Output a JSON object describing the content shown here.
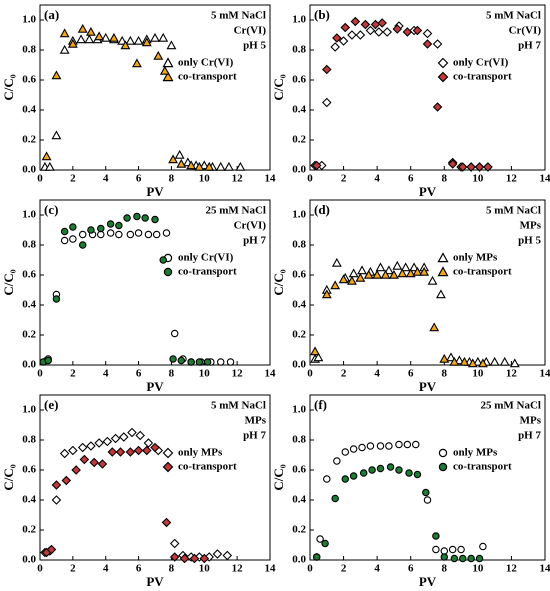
{
  "chart_data": [
    {
      "type": "scatter",
      "panel_label": "(a)",
      "annotations": [
        "5 mM NaCl",
        "Cr(VI)",
        "pH 5"
      ],
      "xlabel": "PV",
      "ylabel": "C/C₀",
      "legend": "upper right",
      "xlim": [
        0,
        14
      ],
      "xticks": [
        0,
        2,
        4,
        6,
        8,
        10,
        12,
        14
      ],
      "ylim": [
        0,
        1.1
      ],
      "yticks": [
        {
          "value": 0,
          "label": "0.0"
        },
        {
          "value": 0.2,
          "label": "0.2"
        },
        {
          "value": 0.4,
          "label": "0.4"
        },
        {
          "value": 0.6,
          "label": "0.6"
        },
        {
          "value": 0.8,
          "label": "0.8"
        },
        {
          "value": 1,
          "label": "1.0"
        }
      ],
      "series": [
        {
          "name": "only Cr(VI)",
          "marker": "triangle",
          "color": "#ffffff",
          "edgecolor": "#000000",
          "x": [
            0.3,
            0.6,
            1.0,
            1.5,
            2.0,
            2.5,
            3.0,
            3.5,
            4.0,
            4.5,
            5.0,
            5.5,
            6.0,
            6.5,
            7.0,
            7.5,
            8.0,
            8.5,
            9.0,
            9.5,
            10.0,
            10.5,
            11.0,
            11.5,
            12.2
          ],
          "values": [
            0.02,
            0.02,
            0.23,
            0.8,
            0.86,
            0.87,
            0.87,
            0.87,
            0.88,
            0.87,
            0.86,
            0.86,
            0.86,
            0.87,
            0.88,
            0.88,
            0.83,
            0.1,
            0.05,
            0.03,
            0.03,
            0.02,
            0.02,
            0.02,
            0.02
          ]
        },
        {
          "name": "co-transport",
          "marker": "triangle",
          "color": "#f2a71b",
          "edgecolor": "#000000",
          "x": [
            0.4,
            1.0,
            1.5,
            2.0,
            2.6,
            3.1,
            3.6,
            4.5,
            5.2,
            5.9,
            6.5,
            7.2,
            7.6,
            8.1,
            8.6,
            9.2,
            9.7,
            10.3
          ],
          "values": [
            0.09,
            0.63,
            0.91,
            0.84,
            0.94,
            0.92,
            0.89,
            0.88,
            0.83,
            0.71,
            0.85,
            0.76,
            0.66,
            0.07,
            0.04,
            0.03,
            0.02,
            0.02
          ]
        }
      ]
    },
    {
      "type": "scatter",
      "panel_label": "(b)",
      "annotations": [
        "5 mM NaCl",
        "Cr(VI)",
        "pH 7"
      ],
      "xlabel": "PV",
      "ylabel": "C/C₀",
      "legend": "upper right",
      "xlim": [
        0,
        14
      ],
      "xticks": [
        0,
        2,
        4,
        6,
        8,
        10,
        12,
        14
      ],
      "ylim": [
        0,
        1.1
      ],
      "yticks": [
        {
          "value": 0,
          "label": "0.0"
        },
        {
          "value": 0.2,
          "label": "0.2"
        },
        {
          "value": 0.4,
          "label": "0.4"
        },
        {
          "value": 0.6,
          "label": "0.6"
        },
        {
          "value": 0.8,
          "label": "0.8"
        },
        {
          "value": 1,
          "label": "1.0"
        }
      ],
      "series": [
        {
          "name": "only Cr(VI)",
          "marker": "diamond",
          "color": "#ffffff",
          "edgecolor": "#000000",
          "x": [
            0.3,
            0.7,
            1.0,
            1.5,
            2.0,
            2.5,
            3.0,
            3.6,
            4.1,
            4.6,
            5.3,
            6.2,
            7.0,
            7.6,
            8.5,
            9.0,
            9.6,
            10.1,
            10.6
          ],
          "values": [
            0.03,
            0.03,
            0.45,
            0.82,
            0.86,
            0.9,
            0.9,
            0.93,
            0.92,
            0.92,
            0.96,
            0.93,
            0.91,
            0.84,
            0.05,
            0.02,
            0.02,
            0.02,
            0.02
          ]
        },
        {
          "name": "co-transport",
          "marker": "diamond",
          "color": "#c0393b",
          "edgecolor": "#000000",
          "x": [
            0.4,
            1.0,
            1.6,
            2.1,
            2.7,
            3.3,
            3.9,
            4.3,
            5.2,
            5.8,
            6.4,
            7.0,
            7.6,
            8.5,
            9.1,
            9.6,
            10.1,
            10.6
          ],
          "values": [
            0.03,
            0.67,
            0.88,
            0.95,
            0.99,
            0.97,
            0.97,
            0.98,
            0.94,
            0.92,
            0.93,
            0.84,
            0.42,
            0.04,
            0.02,
            0.02,
            0.02,
            0.02
          ]
        }
      ]
    },
    {
      "type": "scatter",
      "panel_label": "(c)",
      "annotations": [
        "25 mM NaCl",
        "Cr(VI)",
        "pH 7"
      ],
      "xlabel": "PV",
      "ylabel": "C/C₀",
      "legend": "upper right",
      "xlim": [
        0,
        14
      ],
      "xticks": [
        0,
        2,
        4,
        6,
        8,
        10,
        12,
        14
      ],
      "ylim": [
        0,
        1.1
      ],
      "yticks": [
        {
          "value": 0,
          "label": "0.0"
        },
        {
          "value": 0.2,
          "label": "0.2"
        },
        {
          "value": 0.4,
          "label": "0.4"
        },
        {
          "value": 0.6,
          "label": "0.6"
        },
        {
          "value": 0.8,
          "label": "0.8"
        },
        {
          "value": 1,
          "label": "1.0"
        }
      ],
      "series": [
        {
          "name": "only Cr(VI)",
          "marker": "circle",
          "color": "#ffffff",
          "edgecolor": "#000000",
          "x": [
            0.4,
            0.5,
            1.0,
            1.5,
            2.0,
            2.6,
            3.2,
            3.7,
            4.3,
            4.8,
            5.5,
            6.0,
            6.6,
            7.1,
            7.7,
            8.2,
            8.7,
            9.2,
            9.8,
            10.4,
            11.0,
            11.6
          ],
          "values": [
            0.03,
            0.04,
            0.47,
            0.83,
            0.84,
            0.87,
            0.87,
            0.87,
            0.88,
            0.87,
            0.87,
            0.88,
            0.87,
            0.87,
            0.88,
            0.21,
            0.04,
            0.02,
            0.02,
            0.02,
            0.02,
            0.02
          ]
        },
        {
          "name": "co-transport",
          "marker": "circle",
          "color": "#1e7b34",
          "edgecolor": "#000000",
          "x": [
            0.2,
            0.5,
            1.0,
            1.5,
            2.0,
            2.6,
            3.1,
            3.7,
            4.3,
            4.8,
            5.3,
            5.9,
            6.4,
            7.0,
            7.5,
            8.1,
            8.6,
            9.2,
            9.7,
            10.2
          ],
          "values": [
            0.02,
            0.03,
            0.44,
            0.89,
            0.92,
            0.8,
            0.9,
            0.91,
            0.94,
            0.93,
            0.98,
            0.99,
            0.98,
            0.97,
            0.7,
            0.04,
            0.03,
            0.02,
            0.02,
            0.02
          ]
        }
      ]
    },
    {
      "type": "scatter",
      "panel_label": "(d)",
      "annotations": [
        "5 mM NaCl",
        "MPs",
        "pH 5"
      ],
      "xlabel": "PV",
      "ylabel": "C/C₀",
      "legend": "upper right",
      "xlim": [
        0,
        14
      ],
      "xticks": [
        0,
        2,
        4,
        6,
        8,
        10,
        12,
        14
      ],
      "ylim": [
        0,
        1.1
      ],
      "yticks": [
        {
          "value": 0,
          "label": "0.0"
        },
        {
          "value": 0.2,
          "label": "0.2"
        },
        {
          "value": 0.4,
          "label": "0.4"
        },
        {
          "value": 0.6,
          "label": "0.6"
        },
        {
          "value": 0.8,
          "label": "0.8"
        },
        {
          "value": 1,
          "label": "1.0"
        }
      ],
      "series": [
        {
          "name": "only MPs",
          "marker": "triangle",
          "color": "#ffffff",
          "edgecolor": "#000000",
          "x": [
            0.3,
            0.5,
            1.0,
            1.6,
            2.1,
            2.6,
            3.1,
            3.6,
            4.2,
            4.7,
            5.2,
            5.7,
            6.2,
            6.8,
            7.3,
            7.8,
            8.4,
            8.9,
            9.5,
            10.0,
            10.5,
            11.0,
            11.6,
            12.2
          ],
          "values": [
            0.04,
            0.05,
            0.5,
            0.68,
            0.58,
            0.61,
            0.63,
            0.62,
            0.65,
            0.63,
            0.66,
            0.65,
            0.65,
            0.65,
            0.56,
            0.47,
            0.05,
            0.03,
            0.02,
            0.02,
            0.02,
            0.02,
            0.02,
            0.01
          ]
        },
        {
          "name": "co-transport",
          "marker": "triangle",
          "color": "#f2a71b",
          "edgecolor": "#000000",
          "x": [
            0.3,
            1.0,
            1.5,
            2.0,
            2.5,
            3.0,
            3.5,
            4.0,
            4.5,
            5.0,
            5.5,
            6.0,
            6.4,
            6.8,
            7.4,
            8.0,
            8.6,
            9.2,
            9.7,
            10.3
          ],
          "values": [
            0.09,
            0.47,
            0.53,
            0.57,
            0.56,
            0.58,
            0.6,
            0.6,
            0.6,
            0.6,
            0.61,
            0.61,
            0.62,
            0.62,
            0.25,
            0.04,
            0.02,
            0.02,
            0.01,
            0.01
          ]
        }
      ]
    },
    {
      "type": "scatter",
      "panel_label": "(e)",
      "annotations": [
        "5 mM NaCl",
        "MPs",
        "pH 7"
      ],
      "xlabel": "PV",
      "ylabel": "C/C₀",
      "legend": "upper right",
      "xlim": [
        0,
        14
      ],
      "xticks": [
        0,
        2,
        4,
        6,
        8,
        10,
        12,
        14
      ],
      "ylim": [
        0,
        1.1
      ],
      "yticks": [
        {
          "value": 0,
          "label": "0.0"
        },
        {
          "value": 0.2,
          "label": "0.2"
        },
        {
          "value": 0.4,
          "label": "0.4"
        },
        {
          "value": 0.6,
          "label": "0.6"
        },
        {
          "value": 0.8,
          "label": "0.8"
        },
        {
          "value": 1,
          "label": "1.0"
        }
      ],
      "series": [
        {
          "name": "only MPs",
          "marker": "diamond",
          "color": "#ffffff",
          "edgecolor": "#000000",
          "x": [
            0.3,
            0.6,
            1.0,
            1.5,
            2.0,
            2.6,
            3.1,
            3.6,
            4.1,
            4.6,
            5.1,
            5.6,
            6.1,
            6.6,
            7.2,
            8.2,
            8.7,
            9.2,
            9.7,
            10.3,
            10.8,
            11.4
          ],
          "values": [
            0.05,
            0.06,
            0.4,
            0.71,
            0.73,
            0.75,
            0.76,
            0.78,
            0.79,
            0.81,
            0.82,
            0.85,
            0.83,
            0.78,
            0.73,
            0.11,
            0.03,
            0.02,
            0.02,
            0.02,
            0.04,
            0.03
          ]
        },
        {
          "name": "co-transport",
          "marker": "diamond",
          "color": "#c0393b",
          "edgecolor": "#000000",
          "x": [
            0.4,
            0.7,
            1.0,
            1.6,
            2.2,
            2.7,
            3.3,
            3.8,
            4.4,
            4.9,
            5.5,
            6.0,
            6.5,
            7.0,
            7.7,
            8.2,
            8.8,
            9.4,
            10.0
          ],
          "values": [
            0.05,
            0.07,
            0.5,
            0.53,
            0.6,
            0.67,
            0.65,
            0.64,
            0.72,
            0.72,
            0.72,
            0.73,
            0.73,
            0.75,
            0.25,
            0.02,
            0.01,
            0.01,
            0.01
          ]
        }
      ]
    },
    {
      "type": "scatter",
      "panel_label": "(f)",
      "annotations": [
        "25 mM NaCl",
        "MPs",
        "pH 7"
      ],
      "xlabel": "PV",
      "ylabel": "C/C₀",
      "legend": "upper right",
      "xlim": [
        0,
        14
      ],
      "xticks": [
        0,
        2,
        4,
        6,
        8,
        10,
        12,
        14
      ],
      "ylim": [
        0,
        1.1
      ],
      "yticks": [
        {
          "value": 0,
          "label": "0.0"
        },
        {
          "value": 0.2,
          "label": "0.2"
        },
        {
          "value": 0.4,
          "label": "0.4"
        },
        {
          "value": 0.6,
          "label": "0.6"
        },
        {
          "value": 0.8,
          "label": "0.8"
        },
        {
          "value": 1,
          "label": "1.0"
        }
      ],
      "series": [
        {
          "name": "only MPs",
          "marker": "circle",
          "color": "#ffffff",
          "edgecolor": "#000000",
          "x": [
            0.4,
            0.6,
            1.0,
            1.6,
            2.1,
            2.6,
            3.1,
            3.6,
            4.2,
            4.7,
            5.3,
            5.8,
            6.3,
            7.0,
            7.5,
            8.0,
            8.5,
            9.0,
            10.3
          ],
          "values": [
            0.02,
            0.14,
            0.54,
            0.66,
            0.72,
            0.74,
            0.75,
            0.76,
            0.76,
            0.76,
            0.77,
            0.77,
            0.77,
            0.4,
            0.07,
            0.06,
            0.07,
            0.07,
            0.09
          ]
        },
        {
          "name": "co-transport",
          "marker": "circle",
          "color": "#1e7b34",
          "edgecolor": "#000000",
          "x": [
            0.4,
            0.9,
            1.5,
            2.1,
            2.6,
            3.2,
            3.7,
            4.2,
            4.8,
            5.3,
            5.9,
            6.4,
            6.9,
            7.5,
            8.0,
            8.6,
            9.1,
            9.6,
            10.1
          ],
          "values": [
            0.02,
            0.11,
            0.41,
            0.54,
            0.56,
            0.58,
            0.6,
            0.61,
            0.62,
            0.6,
            0.58,
            0.57,
            0.45,
            0.16,
            0.02,
            0.01,
            0.01,
            0.01,
            0.01
          ]
        }
      ]
    }
  ]
}
